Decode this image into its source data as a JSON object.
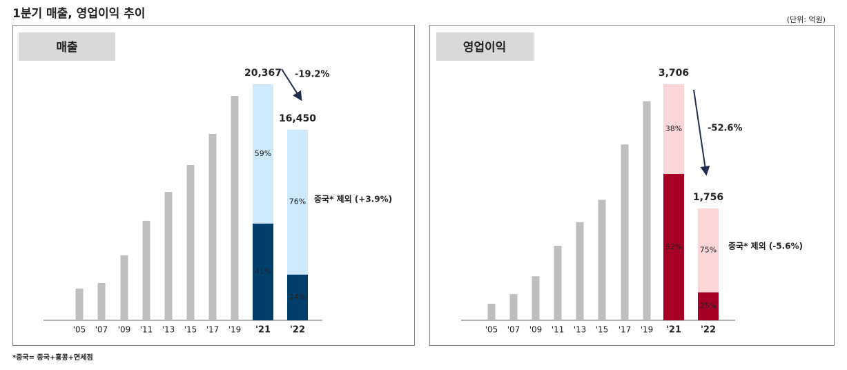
{
  "header": {
    "title": "1분기 매출, 영업이익 추이",
    "unit": "(단위: 억원)"
  },
  "footnote": "*중국= 중국+홍콩+면세점",
  "chart_data": [
    {
      "type": "bar",
      "title": "매출",
      "categories": [
        "'05",
        "'07",
        "'09",
        "'11",
        "'13",
        "'15",
        "'17",
        "'19",
        "'21",
        "'22"
      ],
      "values": [
        2740,
        3220,
        5600,
        8580,
        11080,
        13400,
        16080,
        19350,
        20367,
        16450
      ],
      "value_labels": [
        null,
        null,
        null,
        null,
        null,
        null,
        null,
        null,
        "20,367",
        "16,450"
      ],
      "color": "#bfbfbf",
      "shares": [
        {
          "color": "#003f6b",
          "values": [
            null,
            null,
            null,
            null,
            null,
            null,
            null,
            null,
            41,
            24
          ],
          "value_labels": [
            null,
            null,
            null,
            null,
            null,
            null,
            null,
            null,
            "41%",
            "24%"
          ]
        },
        {
          "color": "#cde9fb",
          "values": [
            null,
            null,
            null,
            null,
            null,
            null,
            null,
            null,
            59,
            76
          ],
          "value_labels": [
            null,
            null,
            null,
            null,
            null,
            null,
            null,
            null,
            "59%",
            "76%"
          ]
        }
      ],
      "change_label": "-19.2%",
      "annotation": "중국* 제외 (+3.9%)"
    },
    {
      "type": "bar",
      "title": "영업이익",
      "categories": [
        "'05",
        "'07",
        "'09",
        "'11",
        "'13",
        "'15",
        "'17",
        "'19",
        "'21",
        "'22"
      ],
      "values": [
        260,
        410,
        690,
        1170,
        1540,
        1890,
        2760,
        3440,
        3706,
        1756
      ],
      "value_labels": [
        null,
        null,
        null,
        null,
        null,
        null,
        null,
        null,
        "3,706",
        "1,756"
      ],
      "color": "#bfbfbf",
      "shares": [
        {
          "color": "#a50026",
          "values": [
            null,
            null,
            null,
            null,
            null,
            null,
            null,
            null,
            62,
            25
          ],
          "value_labels": [
            null,
            null,
            null,
            null,
            null,
            null,
            null,
            null,
            "62%",
            "25%"
          ]
        },
        {
          "color": "#fdd7d7",
          "values": [
            null,
            null,
            null,
            null,
            null,
            null,
            null,
            null,
            38,
            75
          ],
          "value_labels": [
            null,
            null,
            null,
            null,
            null,
            null,
            null,
            null,
            "38%",
            "75%"
          ]
        }
      ],
      "change_label": "-52.6%",
      "annotation": "중국* 제외 (-5.6%)"
    }
  ]
}
